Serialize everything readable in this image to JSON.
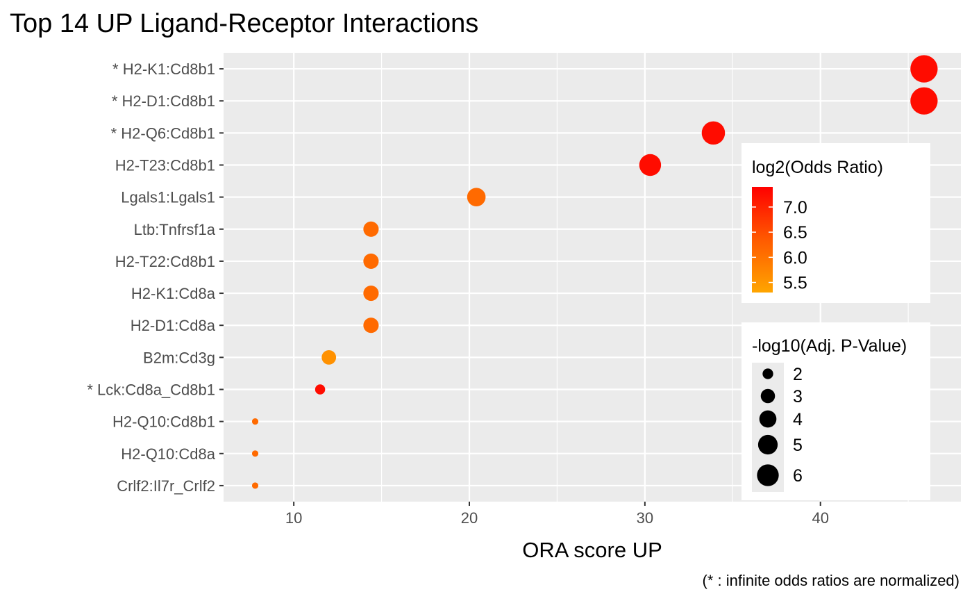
{
  "chart_data": {
    "type": "scatter",
    "title": "Top 14 UP Ligand-Receptor Interactions",
    "xlabel": "ORA score UP",
    "ylabel": "",
    "caption": "(* : infinite odds ratios are normalized)",
    "xlim": [
      6.0,
      48.0
    ],
    "x_major_ticks": [
      10,
      20,
      30,
      40
    ],
    "x_minor_ticks": [
      15,
      25,
      35,
      45
    ],
    "grid": true,
    "points": [
      {
        "label": "* H2-K1:Cd8b1",
        "x": 45.9,
        "log2_odds_ratio": 7.25,
        "neg_log10_adj_p": 6.3
      },
      {
        "label": "* H2-D1:Cd8b1",
        "x": 45.9,
        "log2_odds_ratio": 7.25,
        "neg_log10_adj_p": 6.3
      },
      {
        "label": "* H2-Q6:Cd8b1",
        "x": 33.9,
        "log2_odds_ratio": 7.25,
        "neg_log10_adj_p": 4.8
      },
      {
        "label": "H2-T23:Cd8b1",
        "x": 30.3,
        "log2_odds_ratio": 7.25,
        "neg_log10_adj_p": 4.3
      },
      {
        "label": "Lgals1:Lgals1",
        "x": 20.4,
        "log2_odds_ratio": 6.05,
        "neg_log10_adj_p": 3.3
      },
      {
        "label": "Ltb:Tnfrsf1a",
        "x": 14.4,
        "log2_odds_ratio": 6.05,
        "neg_log10_adj_p": 2.5
      },
      {
        "label": "H2-T22:Cd8b1",
        "x": 14.4,
        "log2_odds_ratio": 6.05,
        "neg_log10_adj_p": 2.5
      },
      {
        "label": "H2-K1:Cd8a",
        "x": 14.4,
        "log2_odds_ratio": 6.05,
        "neg_log10_adj_p": 2.5
      },
      {
        "label": "H2-D1:Cd8a",
        "x": 14.4,
        "log2_odds_ratio": 6.05,
        "neg_log10_adj_p": 2.5
      },
      {
        "label": "B2m:Cd3g",
        "x": 12.0,
        "log2_odds_ratio": 5.55,
        "neg_log10_adj_p": 2.3
      },
      {
        "label": "* Lck:Cd8a_Cd8b1",
        "x": 11.5,
        "log2_odds_ratio": 7.25,
        "neg_log10_adj_p": 1.5
      },
      {
        "label": "H2-Q10:Cd8b1",
        "x": 7.8,
        "log2_odds_ratio": 6.05,
        "neg_log10_adj_p": 1.05
      },
      {
        "label": "H2-Q10:Cd8a",
        "x": 7.8,
        "log2_odds_ratio": 6.05,
        "neg_log10_adj_p": 1.05
      },
      {
        "label": "Crlf2:Il7r_Crlf2",
        "x": 7.8,
        "log2_odds_ratio": 6.05,
        "neg_log10_adj_p": 1.05
      }
    ],
    "color_legend": {
      "title": "log2(Odds Ratio)",
      "range": [
        5.3,
        7.4
      ],
      "low_color": "#ffa500",
      "high_color": "#ff0000",
      "breaks": [
        7.0,
        6.5,
        6.0,
        5.5
      ],
      "break_labels": [
        "7.0",
        "6.5",
        "6.0",
        "5.5"
      ]
    },
    "size_legend": {
      "title": "-log10(Adj. P-Value)",
      "range": [
        1.0,
        6.5
      ],
      "breaks": [
        2,
        3,
        4,
        5,
        6
      ],
      "break_labels": [
        "2",
        "3",
        "4",
        "5",
        "6"
      ]
    },
    "colors": {
      "panel_background": "#ebebeb",
      "grid_line": "#ffffff",
      "tick_text": "#4d4d4d",
      "axis_tick": "#333333"
    }
  }
}
